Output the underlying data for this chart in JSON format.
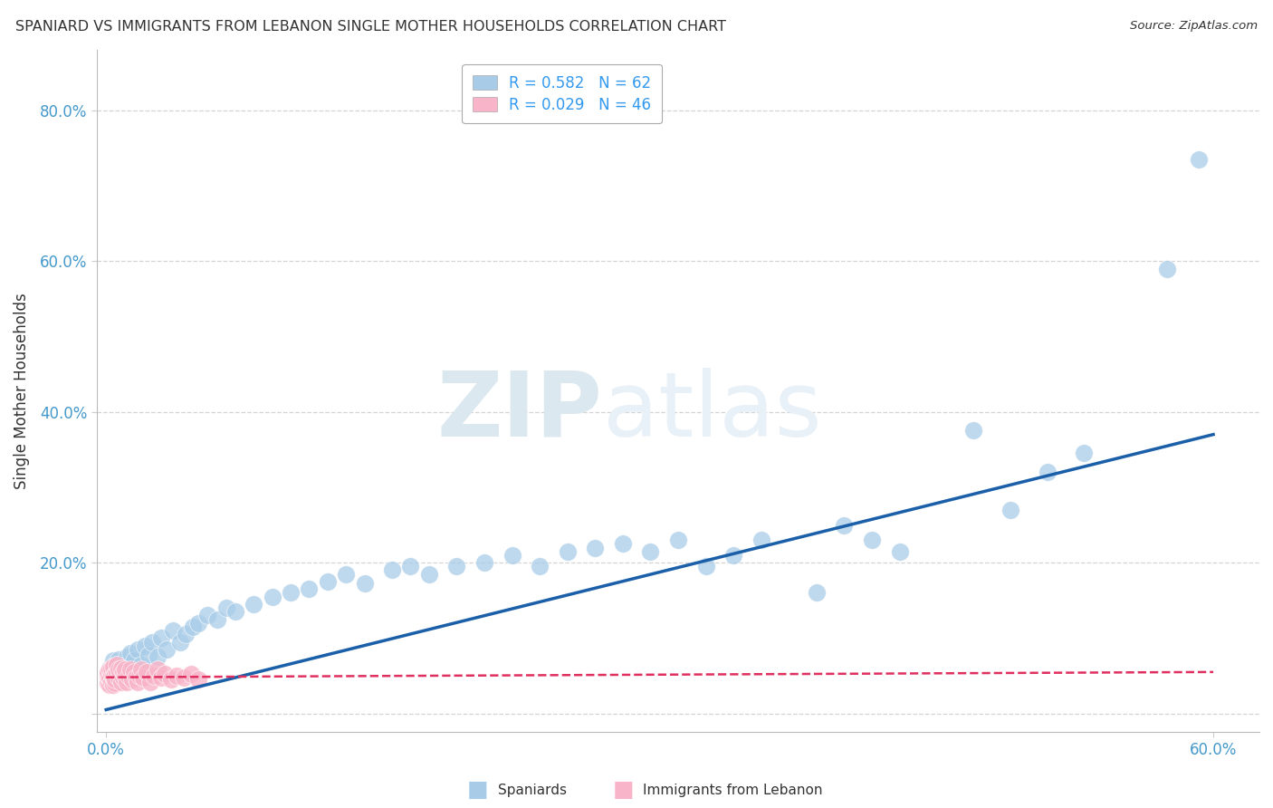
{
  "title": "SPANIARD VS IMMIGRANTS FROM LEBANON SINGLE MOTHER HOUSEHOLDS CORRELATION CHART",
  "source": "Source: ZipAtlas.com",
  "ylabel": "Single Mother Households",
  "y_ticks": [
    0.0,
    0.2,
    0.4,
    0.6,
    0.8
  ],
  "y_tick_labels": [
    "",
    "20.0%",
    "40.0%",
    "60.0%",
    "80.0%"
  ],
  "x_ticks": [
    0.0,
    0.6
  ],
  "x_tick_labels": [
    "0.0%",
    "60.0%"
  ],
  "xlim": [
    -0.005,
    0.625
  ],
  "ylim": [
    -0.025,
    0.88
  ],
  "spaniards_R": 0.582,
  "spaniards_N": 62,
  "lebanon_R": 0.029,
  "lebanon_N": 46,
  "spaniard_color": "#a8cce8",
  "lebanon_color": "#f8b4c8",
  "spaniard_line_color": "#1a5fa8",
  "lebanon_line_color": "#e03060",
  "background_color": "#ffffff",
  "grid_color": "#d0d0d0",
  "title_color": "#333333",
  "tick_color": "#4499cc",
  "legend_text_color": "#3399ee",
  "spaniards_x": [
    0.002,
    0.003,
    0.004,
    0.005,
    0.006,
    0.007,
    0.008,
    0.009,
    0.01,
    0.011,
    0.012,
    0.013,
    0.015,
    0.017,
    0.019,
    0.021,
    0.023,
    0.025,
    0.028,
    0.03,
    0.033,
    0.036,
    0.04,
    0.043,
    0.047,
    0.05,
    0.055,
    0.06,
    0.065,
    0.07,
    0.08,
    0.09,
    0.1,
    0.11,
    0.12,
    0.13,
    0.14,
    0.155,
    0.165,
    0.175,
    0.19,
    0.205,
    0.22,
    0.235,
    0.25,
    0.265,
    0.28,
    0.295,
    0.31,
    0.325,
    0.34,
    0.355,
    0.385,
    0.4,
    0.415,
    0.43,
    0.47,
    0.49,
    0.51,
    0.53,
    0.575,
    0.592
  ],
  "spaniards_y": [
    0.06,
    0.055,
    0.07,
    0.065,
    0.058,
    0.072,
    0.063,
    0.057,
    0.068,
    0.075,
    0.062,
    0.08,
    0.07,
    0.085,
    0.065,
    0.09,
    0.078,
    0.095,
    0.075,
    0.1,
    0.085,
    0.11,
    0.095,
    0.105,
    0.115,
    0.12,
    0.13,
    0.125,
    0.14,
    0.135,
    0.145,
    0.155,
    0.16,
    0.165,
    0.175,
    0.185,
    0.172,
    0.19,
    0.195,
    0.185,
    0.195,
    0.2,
    0.21,
    0.195,
    0.215,
    0.22,
    0.225,
    0.215,
    0.23,
    0.195,
    0.21,
    0.23,
    0.16,
    0.25,
    0.23,
    0.215,
    0.375,
    0.27,
    0.32,
    0.345,
    0.59,
    0.735
  ],
  "lebanon_x": [
    0.001,
    0.001,
    0.001,
    0.002,
    0.002,
    0.002,
    0.003,
    0.003,
    0.003,
    0.004,
    0.004,
    0.004,
    0.005,
    0.005,
    0.005,
    0.006,
    0.006,
    0.007,
    0.007,
    0.008,
    0.008,
    0.009,
    0.009,
    0.01,
    0.01,
    0.011,
    0.012,
    0.013,
    0.014,
    0.015,
    0.016,
    0.017,
    0.018,
    0.019,
    0.02,
    0.022,
    0.024,
    0.026,
    0.028,
    0.03,
    0.032,
    0.035,
    0.038,
    0.042,
    0.046,
    0.05
  ],
  "lebanon_y": [
    0.04,
    0.05,
    0.055,
    0.038,
    0.048,
    0.058,
    0.042,
    0.052,
    0.06,
    0.038,
    0.05,
    0.062,
    0.04,
    0.052,
    0.045,
    0.055,
    0.065,
    0.048,
    0.058,
    0.042,
    0.06,
    0.048,
    0.055,
    0.05,
    0.058,
    0.042,
    0.05,
    0.058,
    0.045,
    0.055,
    0.048,
    0.042,
    0.05,
    0.058,
    0.048,
    0.055,
    0.042,
    0.05,
    0.058,
    0.048,
    0.052,
    0.045,
    0.05,
    0.048,
    0.052,
    0.045
  ],
  "blue_line_x": [
    0.0,
    0.6
  ],
  "blue_line_y": [
    0.005,
    0.37
  ],
  "red_line_x": [
    0.0,
    0.6
  ],
  "red_line_y": [
    0.048,
    0.055
  ]
}
